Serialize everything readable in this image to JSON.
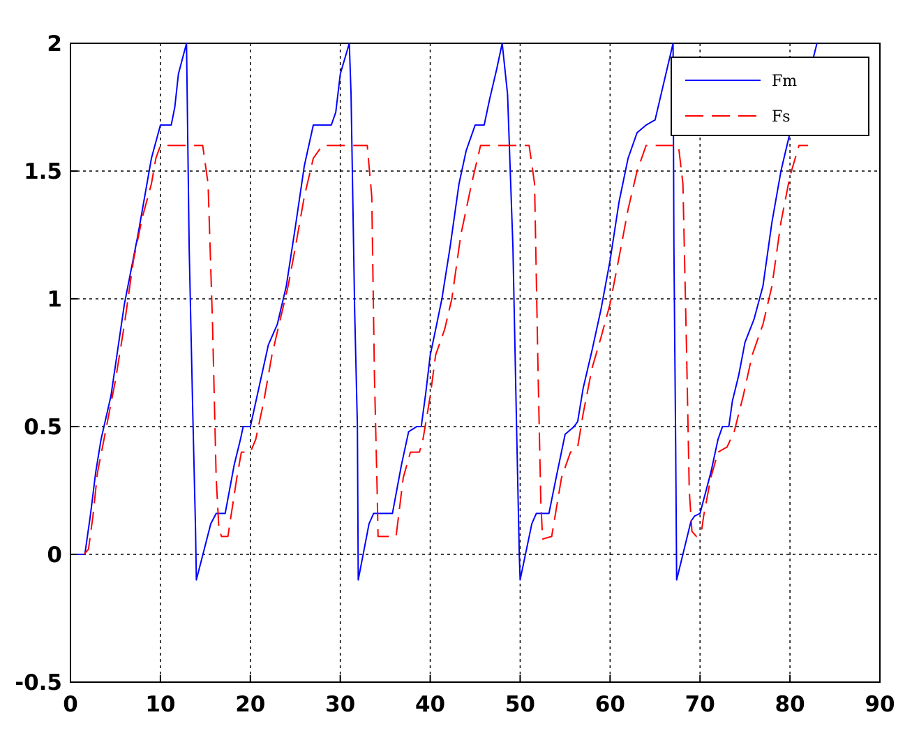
{
  "chart_data": {
    "type": "line",
    "title": "",
    "xlabel": "",
    "ylabel": "",
    "xlim": [
      0,
      90
    ],
    "ylim": [
      -0.5,
      2
    ],
    "xticks": [
      "0",
      "10",
      "20",
      "30",
      "40",
      "50",
      "60",
      "70",
      "80",
      "90"
    ],
    "yticks": [
      "-0.5",
      "0",
      "0.5",
      "1",
      "1.5",
      "2"
    ],
    "grid": true,
    "legend_position": "top-right",
    "series": [
      {
        "name": "Fm",
        "color": "#0000ff",
        "style": "solid",
        "points": [
          [
            0.7,
            0
          ],
          [
            1.6,
            0
          ],
          [
            2.2,
            0.15
          ],
          [
            2.8,
            0.32
          ],
          [
            3.4,
            0.45
          ],
          [
            4.5,
            0.62
          ],
          [
            6,
            0.98
          ],
          [
            7.5,
            1.25
          ],
          [
            9,
            1.55
          ],
          [
            10,
            1.68
          ],
          [
            11,
            1.68
          ],
          [
            11.2,
            1.68
          ],
          [
            11.6,
            1.75
          ],
          [
            12,
            1.88
          ],
          [
            12.9,
            2
          ],
          [
            13.2,
            1.2
          ],
          [
            13.6,
            0.55
          ],
          [
            13.9,
            0.1
          ],
          [
            14,
            -0.1
          ],
          [
            15.6,
            0.12
          ],
          [
            16.2,
            0.16
          ],
          [
            17.2,
            0.16
          ],
          [
            18.2,
            0.35
          ],
          [
            18.9,
            0.45
          ],
          [
            19.2,
            0.5
          ],
          [
            20,
            0.5
          ],
          [
            21,
            0.66
          ],
          [
            22,
            0.82
          ],
          [
            23,
            0.9
          ],
          [
            24,
            1.05
          ],
          [
            25,
            1.28
          ],
          [
            26,
            1.52
          ],
          [
            27,
            1.68
          ],
          [
            29,
            1.68
          ],
          [
            29.5,
            1.73
          ],
          [
            30,
            1.88
          ],
          [
            31,
            2
          ],
          [
            31.2,
            1.8
          ],
          [
            31.6,
            0.95
          ],
          [
            31.9,
            0.5
          ],
          [
            32,
            -0.1
          ],
          [
            33.2,
            0.12
          ],
          [
            33.7,
            0.16
          ],
          [
            35.8,
            0.16
          ],
          [
            36.8,
            0.35
          ],
          [
            37.6,
            0.48
          ],
          [
            38.5,
            0.5
          ],
          [
            39,
            0.5
          ],
          [
            39.5,
            0.63
          ],
          [
            40,
            0.78
          ],
          [
            40.6,
            0.88
          ],
          [
            41.3,
            1
          ],
          [
            42.2,
            1.2
          ],
          [
            43.2,
            1.45
          ],
          [
            44,
            1.58
          ],
          [
            45,
            1.68
          ],
          [
            46,
            1.68
          ],
          [
            46.6,
            1.78
          ],
          [
            47.4,
            1.9
          ],
          [
            48,
            2
          ],
          [
            48.6,
            1.8
          ],
          [
            49.2,
            1.2
          ],
          [
            49.6,
            0.5
          ],
          [
            49.9,
            0
          ],
          [
            50,
            -0.1
          ],
          [
            51.3,
            0.12
          ],
          [
            51.8,
            0.16
          ],
          [
            53.2,
            0.16
          ],
          [
            54,
            0.3
          ],
          [
            55,
            0.47
          ],
          [
            56,
            0.5
          ],
          [
            56.4,
            0.52
          ],
          [
            57,
            0.65
          ],
          [
            58,
            0.8
          ],
          [
            59,
            0.96
          ],
          [
            60,
            1.15
          ],
          [
            61,
            1.38
          ],
          [
            62,
            1.55
          ],
          [
            63,
            1.65
          ],
          [
            64,
            1.68
          ],
          [
            65,
            1.7
          ],
          [
            66,
            1.85
          ],
          [
            67,
            2
          ],
          [
            67.1,
            1.2
          ],
          [
            67.3,
            0.4
          ],
          [
            67.4,
            -0.1
          ],
          [
            69,
            0.13
          ],
          [
            69.4,
            0.15
          ],
          [
            70,
            0.16
          ],
          [
            71.2,
            0.32
          ],
          [
            72,
            0.45
          ],
          [
            72.5,
            0.5
          ],
          [
            73.2,
            0.5
          ],
          [
            73.6,
            0.6
          ],
          [
            74.3,
            0.7
          ],
          [
            75,
            0.83
          ],
          [
            76,
            0.92
          ],
          [
            77,
            1.05
          ],
          [
            78,
            1.3
          ],
          [
            79,
            1.5
          ],
          [
            80,
            1.65
          ],
          [
            81,
            1.75
          ],
          [
            82,
            1.86
          ],
          [
            83,
            2
          ]
        ]
      },
      {
        "name": "Fs",
        "color": "#ff0000",
        "style": "dashed",
        "points": [
          [
            1.5,
            0
          ],
          [
            2,
            0.02
          ],
          [
            2.5,
            0.15
          ],
          [
            3,
            0.32
          ],
          [
            4,
            0.5
          ],
          [
            5,
            0.68
          ],
          [
            6,
            0.9
          ],
          [
            7,
            1.15
          ],
          [
            8,
            1.32
          ],
          [
            9,
            1.45
          ],
          [
            9.5,
            1.55
          ],
          [
            10,
            1.6
          ],
          [
            14.7,
            1.6
          ],
          [
            15.3,
            1.45
          ],
          [
            15.8,
            0.9
          ],
          [
            16.2,
            0.3
          ],
          [
            16.5,
            0.1
          ],
          [
            16.8,
            0.07
          ],
          [
            17.5,
            0.07
          ],
          [
            18.5,
            0.3
          ],
          [
            19,
            0.4
          ],
          [
            20,
            0.4
          ],
          [
            20.6,
            0.45
          ],
          [
            21.5,
            0.6
          ],
          [
            22.4,
            0.78
          ],
          [
            23.2,
            0.9
          ],
          [
            24.2,
            1.05
          ],
          [
            25,
            1.2
          ],
          [
            26,
            1.4
          ],
          [
            27,
            1.55
          ],
          [
            28,
            1.6
          ],
          [
            33,
            1.6
          ],
          [
            33.5,
            1.4
          ],
          [
            33.8,
            0.7
          ],
          [
            34.1,
            0.25
          ],
          [
            34.2,
            0.07
          ],
          [
            36.2,
            0.07
          ],
          [
            37,
            0.3
          ],
          [
            37.8,
            0.4
          ],
          [
            38.8,
            0.4
          ],
          [
            39.2,
            0.45
          ],
          [
            40,
            0.62
          ],
          [
            40.6,
            0.78
          ],
          [
            41.6,
            0.88
          ],
          [
            42.4,
            1
          ],
          [
            43.4,
            1.25
          ],
          [
            44.6,
            1.45
          ],
          [
            45.6,
            1.6
          ],
          [
            51,
            1.6
          ],
          [
            51.6,
            1.45
          ],
          [
            52,
            0.7
          ],
          [
            52.3,
            0.2
          ],
          [
            52.5,
            0.06
          ],
          [
            53.5,
            0.07
          ],
          [
            54.6,
            0.3
          ],
          [
            55.6,
            0.4
          ],
          [
            56.4,
            0.42
          ],
          [
            57,
            0.55
          ],
          [
            58,
            0.73
          ],
          [
            59,
            0.85
          ],
          [
            60,
            0.98
          ],
          [
            61.2,
            1.2
          ],
          [
            62,
            1.35
          ],
          [
            63,
            1.5
          ],
          [
            64,
            1.6
          ],
          [
            67.6,
            1.6
          ],
          [
            68.1,
            1.45
          ],
          [
            68.5,
            0.8
          ],
          [
            68.8,
            0.25
          ],
          [
            69.1,
            0.09
          ],
          [
            69.6,
            0.07
          ],
          [
            70.2,
            0.1
          ],
          [
            70.4,
            0.15
          ],
          [
            71.2,
            0.3
          ],
          [
            72,
            0.4
          ],
          [
            73,
            0.42
          ],
          [
            73.8,
            0.48
          ],
          [
            74.8,
            0.62
          ],
          [
            75.8,
            0.78
          ],
          [
            77,
            0.9
          ],
          [
            78,
            1.05
          ],
          [
            79,
            1.3
          ],
          [
            80,
            1.48
          ],
          [
            81,
            1.6
          ],
          [
            82,
            1.6
          ]
        ]
      }
    ]
  }
}
